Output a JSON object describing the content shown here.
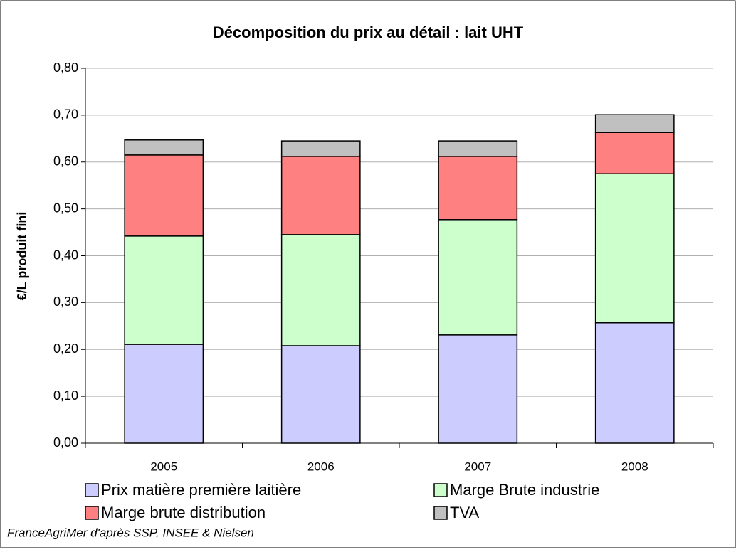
{
  "chart_data": {
    "type": "stacked_bar",
    "title": "Décomposition du prix au détail : lait UHT",
    "y_label": "€/L produit fini",
    "source": "FranceAgriMer d'après SSP, INSEE & Nielsen",
    "categories": [
      "2005",
      "2006",
      "2007",
      "2008"
    ],
    "series": [
      {
        "name": "Prix matière première laitière",
        "color": "#ccccff",
        "values": [
          0.211,
          0.208,
          0.231,
          0.257
        ]
      },
      {
        "name": "Marge Brute industrie",
        "color": "#ccffcc",
        "values": [
          0.231,
          0.237,
          0.246,
          0.318
        ]
      },
      {
        "name": "Marge brute distribution",
        "color": "#ff8080",
        "values": [
          0.173,
          0.167,
          0.135,
          0.088
        ]
      },
      {
        "name": "TVA",
        "color": "#c0c0c0",
        "values": [
          0.032,
          0.033,
          0.033,
          0.038
        ]
      }
    ],
    "ylim": [
      0,
      0.8
    ],
    "yticks": [
      {
        "value": 0,
        "label": "0,00"
      },
      {
        "value": 0.1,
        "label": "0,10"
      },
      {
        "value": 0.2,
        "label": "0,20"
      },
      {
        "value": 0.3,
        "label": "0,30"
      },
      {
        "value": 0.4,
        "label": "0,40"
      },
      {
        "value": 0.5,
        "label": "0,50"
      },
      {
        "value": 0.6,
        "label": "0,60"
      },
      {
        "value": 0.7,
        "label": "0,70"
      },
      {
        "value": 0.8,
        "label": "0,80"
      }
    ],
    "grid": true
  }
}
